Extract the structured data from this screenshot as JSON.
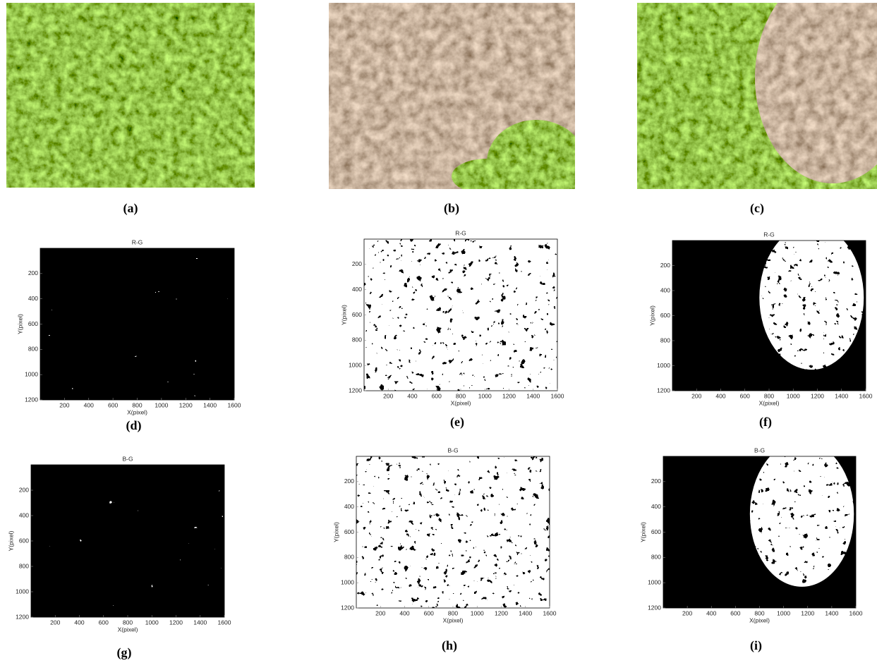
{
  "photos": [
    {
      "label": "(a)"
    },
    {
      "label": "(b)"
    },
    {
      "label": "(c)"
    }
  ],
  "plots": [
    {
      "title": "R-G",
      "label": "(d)"
    },
    {
      "title": "R-G",
      "label": "(e)"
    },
    {
      "title": "R-G",
      "label": "(f)"
    },
    {
      "title": "B-G",
      "label": "(g)"
    },
    {
      "title": "B-G",
      "label": "(h)"
    },
    {
      "title": "B-G",
      "label": "(i)"
    }
  ],
  "axes": {
    "x_label": "X(pixel)",
    "y_label": "Y(pixel)",
    "xlim": [
      0,
      1600
    ],
    "ylim": [
      0,
      1200
    ],
    "xticks": [
      200,
      400,
      600,
      800,
      1000,
      1200,
      1400,
      1600
    ],
    "yticks": [
      200,
      400,
      600,
      800,
      1000,
      1200
    ]
  }
}
